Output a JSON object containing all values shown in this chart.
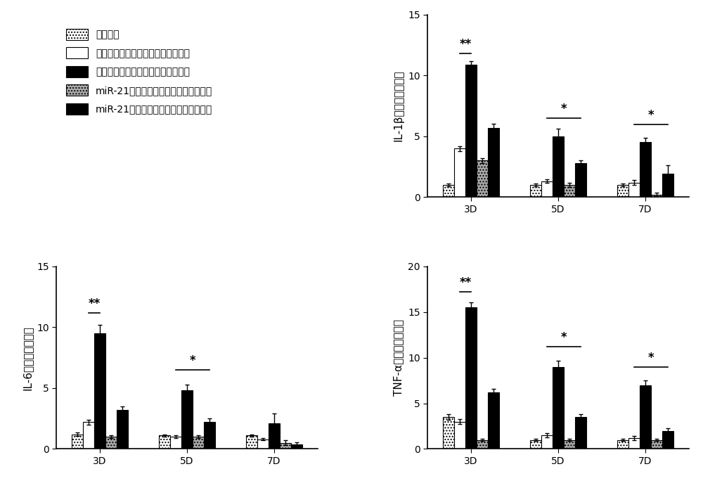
{
  "legend_labels": [
    "假手术组",
    "对照抑制腺病毒心梗正常心肌组织组",
    "对照抑制腺病毒心梗边缘心肌组织组",
    "miR-21抑制腺病毒心梗正常心肌组织组",
    "miR-21抑制腺病毒心梗边缘心肌组织组"
  ],
  "groups": [
    "3D",
    "5D",
    "7D"
  ],
  "il1b": {
    "ylabel": "IL-1β表达量增加倍数",
    "ylim": [
      0,
      15
    ],
    "yticks": [
      0,
      5,
      10,
      15
    ],
    "values": [
      [
        1.0,
        4.0,
        10.9,
        3.0,
        5.7
      ],
      [
        1.0,
        1.3,
        5.0,
        1.0,
        2.8
      ],
      [
        1.0,
        1.2,
        4.5,
        0.2,
        1.9
      ]
    ],
    "errors": [
      [
        0.1,
        0.2,
        0.25,
        0.2,
        0.35
      ],
      [
        0.1,
        0.15,
        0.6,
        0.15,
        0.2
      ],
      [
        0.1,
        0.2,
        0.35,
        0.15,
        0.7
      ]
    ],
    "sig_lines": [
      {
        "group": 0,
        "bar1": 1,
        "bar2": 2,
        "label": "**",
        "y": 11.8
      },
      {
        "group": 1,
        "bar1": 1,
        "bar2": 4,
        "label": "*",
        "y": 6.5
      },
      {
        "group": 2,
        "bar1": 1,
        "bar2": 4,
        "label": "*",
        "y": 6.0
      }
    ]
  },
  "il6": {
    "ylabel": "IL-6表达量增加倍数",
    "ylim": [
      0,
      15
    ],
    "yticks": [
      0,
      5,
      10,
      15
    ],
    "values": [
      [
        1.2,
        2.2,
        9.5,
        1.0,
        3.2
      ],
      [
        1.1,
        1.0,
        4.8,
        1.0,
        2.2
      ],
      [
        1.1,
        0.8,
        2.1,
        0.5,
        0.4
      ]
    ],
    "errors": [
      [
        0.15,
        0.2,
        0.7,
        0.1,
        0.3
      ],
      [
        0.1,
        0.1,
        0.5,
        0.1,
        0.3
      ],
      [
        0.1,
        0.1,
        0.8,
        0.2,
        0.15
      ]
    ],
    "sig_lines": [
      {
        "group": 0,
        "bar1": 1,
        "bar2": 2,
        "label": "**",
        "y": 11.2
      },
      {
        "group": 1,
        "bar1": 1,
        "bar2": 4,
        "label": "*",
        "y": 6.5
      }
    ]
  },
  "tnfa": {
    "ylabel": "TNF-α表达量增加倍数",
    "ylim": [
      0,
      20
    ],
    "yticks": [
      0,
      5,
      10,
      15,
      20
    ],
    "values": [
      [
        3.5,
        3.0,
        15.5,
        1.0,
        6.2
      ],
      [
        1.0,
        1.5,
        9.0,
        1.0,
        3.5
      ],
      [
        1.0,
        1.2,
        7.0,
        1.0,
        2.0
      ]
    ],
    "errors": [
      [
        0.3,
        0.3,
        0.6,
        0.15,
        0.4
      ],
      [
        0.1,
        0.2,
        0.7,
        0.1,
        0.3
      ],
      [
        0.1,
        0.2,
        0.5,
        0.1,
        0.3
      ]
    ],
    "sig_lines": [
      {
        "group": 0,
        "bar1": 1,
        "bar2": 2,
        "label": "**",
        "y": 17.2
      },
      {
        "group": 1,
        "bar1": 1,
        "bar2": 4,
        "label": "*",
        "y": 11.2
      },
      {
        "group": 2,
        "bar1": 1,
        "bar2": 4,
        "label": "*",
        "y": 9.0
      }
    ]
  },
  "bar_width": 0.13,
  "fontsize_label": 11,
  "fontsize_tick": 10,
  "fontsize_legend": 10
}
